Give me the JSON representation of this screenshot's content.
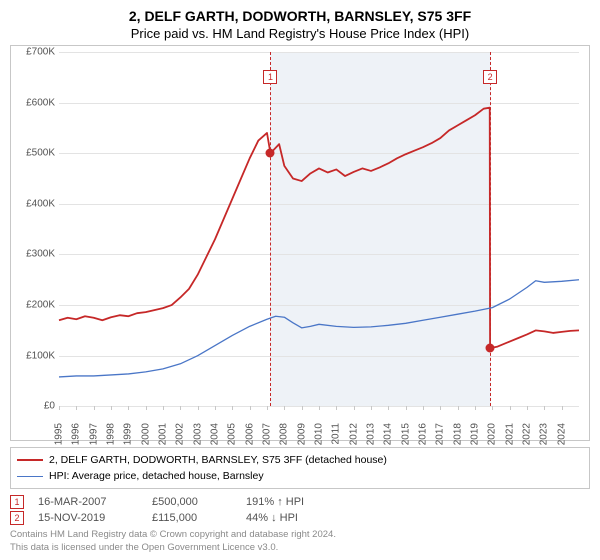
{
  "title": {
    "main": "2, DELF GARTH, DODWORTH, BARNSLEY, S75 3FF",
    "sub": "Price paid vs. HM Land Registry's House Price Index (HPI)"
  },
  "chart": {
    "type": "line",
    "background_color": "#ffffff",
    "grid_color": "#e3e3e3",
    "border_color": "#c7c7c7",
    "axis_label_color": "#525252",
    "axis_fontsize": 10,
    "ylim": [
      0,
      700000
    ],
    "ytick_step": 100000,
    "yticks": [
      "£0",
      "£100K",
      "£200K",
      "£300K",
      "£400K",
      "£500K",
      "£600K",
      "£700K"
    ],
    "xlim": [
      1995,
      2025
    ],
    "xticks": [
      1995,
      1996,
      1997,
      1998,
      1999,
      2000,
      2001,
      2002,
      2003,
      2004,
      2005,
      2006,
      2007,
      2008,
      2009,
      2010,
      2011,
      2012,
      2013,
      2014,
      2015,
      2016,
      2017,
      2018,
      2019,
      2020,
      2021,
      2022,
      2023,
      2024
    ],
    "future_shade": {
      "from_year": 2007.2,
      "to_year": 2019.9,
      "color": "#eef2f7"
    },
    "markers": [
      {
        "label": "1",
        "year": 2007.2,
        "value": 500000,
        "box_top": 0.05
      },
      {
        "label": "2",
        "year": 2019.87,
        "value": 115000,
        "box_top": 0.05
      }
    ],
    "marker_dot_color": "#c62828",
    "marker_box_border": "#c62828",
    "vline_color": "#c62828",
    "series": [
      {
        "name": "price_paid",
        "label": "2, DELF GARTH, DODWORTH, BARNSLEY, S75 3FF (detached house)",
        "color": "#c62828",
        "width": 1.8,
        "points": [
          [
            1995,
            170000
          ],
          [
            1995.5,
            175000
          ],
          [
            1996,
            172000
          ],
          [
            1996.5,
            178000
          ],
          [
            1997,
            175000
          ],
          [
            1997.5,
            170000
          ],
          [
            1998,
            176000
          ],
          [
            1998.5,
            180000
          ],
          [
            1999,
            178000
          ],
          [
            1999.5,
            184000
          ],
          [
            2000,
            186000
          ],
          [
            2000.5,
            190000
          ],
          [
            2001,
            194000
          ],
          [
            2001.5,
            200000
          ],
          [
            2002,
            215000
          ],
          [
            2002.5,
            232000
          ],
          [
            2003,
            260000
          ],
          [
            2003.5,
            295000
          ],
          [
            2004,
            330000
          ],
          [
            2004.5,
            370000
          ],
          [
            2005,
            410000
          ],
          [
            2005.5,
            450000
          ],
          [
            2006,
            490000
          ],
          [
            2006.5,
            525000
          ],
          [
            2007,
            540000
          ],
          [
            2007.2,
            500000
          ],
          [
            2007.7,
            518000
          ],
          [
            2008,
            475000
          ],
          [
            2008.5,
            450000
          ],
          [
            2009,
            445000
          ],
          [
            2009.5,
            460000
          ],
          [
            2010,
            470000
          ],
          [
            2010.5,
            462000
          ],
          [
            2011,
            468000
          ],
          [
            2011.5,
            455000
          ],
          [
            2012,
            463000
          ],
          [
            2012.5,
            470000
          ],
          [
            2013,
            465000
          ],
          [
            2013.5,
            472000
          ],
          [
            2014,
            480000
          ],
          [
            2014.5,
            490000
          ],
          [
            2015,
            498000
          ],
          [
            2015.5,
            505000
          ],
          [
            2016,
            512000
          ],
          [
            2016.5,
            520000
          ],
          [
            2017,
            530000
          ],
          [
            2017.5,
            545000
          ],
          [
            2018,
            555000
          ],
          [
            2018.5,
            565000
          ],
          [
            2019,
            575000
          ],
          [
            2019.5,
            588000
          ],
          [
            2019.85,
            590000
          ],
          [
            2019.87,
            115000
          ],
          [
            2020.3,
            118000
          ],
          [
            2021,
            128000
          ],
          [
            2021.5,
            135000
          ],
          [
            2022,
            142000
          ],
          [
            2022.5,
            150000
          ],
          [
            2023,
            148000
          ],
          [
            2023.5,
            145000
          ],
          [
            2024,
            147000
          ],
          [
            2024.5,
            149000
          ],
          [
            2025,
            150000
          ]
        ]
      },
      {
        "name": "hpi",
        "label": "HPI: Average price, detached house, Barnsley",
        "color": "#4a76c7",
        "width": 1.3,
        "points": [
          [
            1995,
            58000
          ],
          [
            1996,
            60000
          ],
          [
            1997,
            60000
          ],
          [
            1998,
            62000
          ],
          [
            1999,
            64000
          ],
          [
            2000,
            68000
          ],
          [
            2001,
            74000
          ],
          [
            2002,
            84000
          ],
          [
            2003,
            100000
          ],
          [
            2004,
            120000
          ],
          [
            2005,
            140000
          ],
          [
            2006,
            158000
          ],
          [
            2007,
            172000
          ],
          [
            2007.5,
            178000
          ],
          [
            2008,
            176000
          ],
          [
            2008.5,
            165000
          ],
          [
            2009,
            155000
          ],
          [
            2009.5,
            158000
          ],
          [
            2010,
            162000
          ],
          [
            2011,
            158000
          ],
          [
            2012,
            156000
          ],
          [
            2013,
            157000
          ],
          [
            2014,
            160000
          ],
          [
            2015,
            164000
          ],
          [
            2016,
            170000
          ],
          [
            2017,
            176000
          ],
          [
            2018,
            182000
          ],
          [
            2019,
            188000
          ],
          [
            2020,
            195000
          ],
          [
            2021,
            212000
          ],
          [
            2022,
            235000
          ],
          [
            2022.5,
            248000
          ],
          [
            2023,
            245000
          ],
          [
            2024,
            247000
          ],
          [
            2025,
            250000
          ]
        ]
      }
    ]
  },
  "legend": {
    "border_color": "#c7c7c7",
    "fontsize": 10.5
  },
  "events": [
    {
      "label": "1",
      "date": "16-MAR-2007",
      "price": "£500,000",
      "delta": "191% ↑ HPI"
    },
    {
      "label": "2",
      "date": "15-NOV-2019",
      "price": "£115,000",
      "delta": "44% ↓ HPI"
    }
  ],
  "footnote": {
    "line1": "Contains HM Land Registry data © Crown copyright and database right 2024.",
    "line2": "This data is licensed under the Open Government Licence v3.0."
  }
}
